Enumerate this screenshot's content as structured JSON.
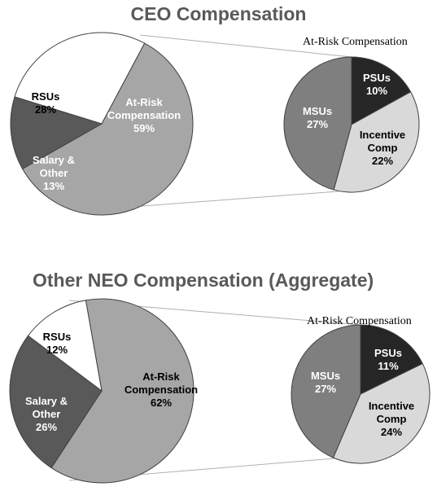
{
  "chart_data": [
    {
      "type": "pie",
      "title": "CEO Compensation",
      "main_pie": {
        "slices": [
          {
            "label": "At-Risk\nCompensation\n59%",
            "value": 59,
            "color": "#a6a6a6",
            "text_color": "#ffffff"
          },
          {
            "label": "Salary &\nOther\n13%",
            "value": 13,
            "color": "#595959",
            "text_color": "#ffffff"
          },
          {
            "label": "RSUs\n28%",
            "value": 28,
            "color": "#ffffff",
            "text_color": "#000000"
          }
        ]
      },
      "breakout_title": "At-Risk Compensation",
      "breakout_pie": {
        "slices": [
          {
            "label": "PSUs\n10%",
            "value": 10,
            "color": "#262626",
            "text_color": "#ffffff"
          },
          {
            "label": "Incentive\nComp\n22%",
            "value": 22,
            "color": "#d9d9d9",
            "text_color": "#000000"
          },
          {
            "label": "MSUs\n27%",
            "value": 27,
            "color": "#7f7f7f",
            "text_color": "#ffffff"
          }
        ]
      }
    },
    {
      "type": "pie",
      "title": "Other NEO Compensation (Aggregate)",
      "main_pie": {
        "slices": [
          {
            "label": "At-Risk\nCompensation\n62%",
            "value": 62,
            "color": "#a6a6a6",
            "text_color": "#000000"
          },
          {
            "label": "Salary &\nOther\n26%",
            "value": 26,
            "color": "#595959",
            "text_color": "#ffffff"
          },
          {
            "label": "RSUs\n12%",
            "value": 12,
            "color": "#ffffff",
            "text_color": "#000000"
          }
        ]
      },
      "breakout_title": "At-Risk Compensation",
      "breakout_pie": {
        "slices": [
          {
            "label": "PSUs\n11%",
            "value": 11,
            "color": "#262626",
            "text_color": "#ffffff"
          },
          {
            "label": "Incentive\nComp\n24%",
            "value": 24,
            "color": "#d9d9d9",
            "text_color": "#000000"
          },
          {
            "label": "MSUs\n27%",
            "value": 27,
            "color": "#7f7f7f",
            "text_color": "#ffffff"
          }
        ]
      }
    }
  ]
}
